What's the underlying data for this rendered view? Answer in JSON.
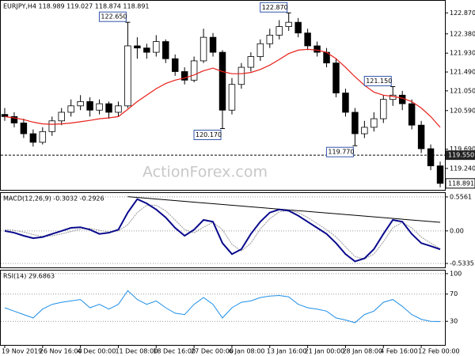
{
  "chart_data": {
    "type": "candlestick",
    "title": "EURJPY,H4  118.989 119.027 118.874 118.891",
    "watermark": "ActionForex.com",
    "categories": [
      "19 Nov 2019",
      null,
      null,
      null,
      "26 Nov 16:00",
      null,
      null,
      null,
      "4 Dec 00:00",
      null,
      null,
      null,
      "11 Dec 08:00",
      null,
      null,
      null,
      "18 Dec 16:00",
      null,
      null,
      null,
      "27 Dec 00:00",
      null,
      null,
      null,
      "6 Jan 08:00",
      null,
      null,
      null,
      "13 Jan 16:00",
      null,
      null,
      null,
      "21 Jan 00:00",
      null,
      null,
      null,
      "28 Jan 08:00",
      null,
      null,
      null,
      "4 Feb 16:00",
      null,
      null,
      null,
      "12 Feb 00:00",
      null,
      null
    ],
    "open": [
      120.5,
      120.45,
      120.3,
      120.05,
      119.85,
      120.1,
      120.35,
      120.55,
      120.7,
      120.8,
      120.6,
      120.75,
      120.55,
      120.7,
      122.1,
      122.05,
      121.95,
      122.2,
      121.8,
      121.5,
      121.3,
      121.75,
      122.3,
      121.95,
      120.6,
      121.2,
      121.6,
      121.85,
      122.15,
      122.35,
      122.55,
      122.65,
      122.4,
      122.1,
      121.95,
      121.7,
      121.0,
      120.55,
      120.05,
      120.2,
      120.4,
      120.85,
      120.95,
      120.75,
      120.25,
      119.7,
      119.3
    ],
    "high": [
      120.65,
      120.55,
      120.4,
      120.15,
      120.2,
      120.45,
      120.65,
      120.85,
      120.95,
      120.9,
      120.85,
      120.8,
      120.8,
      122.65,
      122.3,
      122.15,
      122.35,
      122.25,
      121.9,
      121.6,
      121.85,
      122.5,
      122.4,
      122.0,
      121.35,
      121.7,
      121.95,
      122.25,
      122.5,
      122.7,
      122.87,
      122.75,
      122.5,
      122.2,
      122.05,
      121.8,
      121.1,
      120.65,
      120.35,
      120.55,
      120.95,
      121.15,
      121.05,
      120.85,
      120.35,
      119.8,
      119.4
    ],
    "low": [
      120.35,
      120.2,
      119.95,
      119.75,
      119.8,
      120.0,
      120.25,
      120.45,
      120.6,
      120.45,
      120.5,
      120.4,
      120.45,
      120.65,
      121.8,
      121.8,
      121.85,
      121.7,
      121.4,
      121.2,
      121.25,
      121.7,
      121.85,
      120.17,
      120.5,
      121.1,
      121.5,
      121.75,
      122.05,
      122.25,
      122.45,
      122.3,
      122.0,
      121.85,
      121.6,
      120.9,
      120.45,
      119.77,
      119.95,
      120.1,
      120.3,
      120.7,
      120.6,
      120.15,
      119.6,
      119.2,
      118.8
    ],
    "close": [
      120.45,
      120.3,
      120.05,
      119.85,
      120.1,
      120.35,
      120.55,
      120.7,
      120.8,
      120.6,
      120.75,
      120.55,
      120.7,
      122.1,
      122.05,
      121.95,
      122.2,
      121.8,
      121.5,
      121.3,
      121.75,
      122.3,
      121.95,
      120.6,
      121.2,
      121.6,
      121.85,
      122.15,
      122.35,
      122.55,
      122.65,
      122.4,
      122.1,
      121.95,
      121.7,
      121.0,
      120.55,
      120.05,
      120.2,
      120.4,
      120.85,
      120.95,
      120.75,
      120.25,
      119.7,
      119.3,
      118.891
    ],
    "ma": {
      "color": "#e8201a",
      "values": [
        120.45,
        120.42,
        120.38,
        120.32,
        120.28,
        120.27,
        120.28,
        120.3,
        120.33,
        120.36,
        120.4,
        120.42,
        120.45,
        120.62,
        120.8,
        120.95,
        121.1,
        121.22,
        121.3,
        121.35,
        121.42,
        121.52,
        121.58,
        121.5,
        121.45,
        121.45,
        121.48,
        121.55,
        121.65,
        121.78,
        121.92,
        122.0,
        122.02,
        122.0,
        121.95,
        121.8,
        121.6,
        121.38,
        121.18,
        121.02,
        120.95,
        120.92,
        120.88,
        120.8,
        120.65,
        120.45,
        120.2
      ]
    },
    "ylim": [
      118.74,
      123.17
    ],
    "yticks": [
      {
        "value": 122.87,
        "label": "122.870"
      },
      {
        "value": 122.38,
        "label": "122.380"
      },
      {
        "value": 121.93,
        "label": "121.930"
      },
      {
        "value": 121.49,
        "label": "121.490"
      },
      {
        "value": 121.05,
        "label": "121.050"
      },
      {
        "value": 120.59,
        "label": "120.590"
      },
      {
        "value": 119.69,
        "label": "119.690"
      },
      {
        "value": 119.24,
        "label": "119.240"
      }
    ],
    "level": {
      "value": 119.55,
      "label": "119.550"
    },
    "last_price": {
      "value": 118.891,
      "label": "118.891"
    },
    "annotations": [
      {
        "index": 13,
        "value": 122.65,
        "label": "122.650"
      },
      {
        "index": 30,
        "value": 122.87,
        "label": "122.870"
      },
      {
        "index": 23,
        "value": 120.17,
        "label": "120.170"
      },
      {
        "index": 37,
        "value": 119.77,
        "label": "119.770"
      },
      {
        "index": 41,
        "value": 121.15,
        "label": "121.150"
      }
    ],
    "macd": {
      "title": "MACD(12,26,9) -0.3032 -0.2926",
      "ylim": [
        -0.598,
        0.633
      ],
      "yticks": [
        0.5561,
        {
          "value": 0,
          "label": "0.00"
        },
        -0.5335
      ],
      "main": {
        "color": "#0a0a8c",
        "values": [
          0.0,
          -0.03,
          -0.08,
          -0.12,
          -0.1,
          -0.05,
          0.0,
          0.05,
          0.06,
          0.02,
          -0.05,
          -0.03,
          0.02,
          0.3,
          0.52,
          0.45,
          0.35,
          0.22,
          0.05,
          -0.08,
          0.02,
          0.18,
          0.15,
          -0.2,
          -0.38,
          -0.3,
          -0.05,
          0.15,
          0.3,
          0.35,
          0.33,
          0.25,
          0.15,
          0.05,
          -0.05,
          -0.2,
          -0.38,
          -0.5,
          -0.45,
          -0.3,
          -0.05,
          0.18,
          0.15,
          -0.05,
          -0.2,
          -0.25,
          -0.3032
        ]
      },
      "signal": {
        "color": "#999999",
        "values": [
          0.02,
          0.01,
          -0.02,
          -0.06,
          -0.09,
          -0.08,
          -0.05,
          -0.01,
          0.03,
          0.04,
          0.01,
          -0.02,
          0.0,
          0.1,
          0.3,
          0.42,
          0.42,
          0.33,
          0.18,
          0.02,
          -0.03,
          0.06,
          0.14,
          0.02,
          -0.22,
          -0.33,
          -0.2,
          0.03,
          0.2,
          0.31,
          0.34,
          0.3,
          0.22,
          0.12,
          0.02,
          -0.1,
          -0.26,
          -0.42,
          -0.46,
          -0.38,
          -0.18,
          0.05,
          0.14,
          0.05,
          -0.1,
          -0.2,
          -0.2926
        ]
      },
      "trendline": {
        "x": [
          13,
          46
        ],
        "values": [
          0.56,
          0.14
        ]
      }
    },
    "rsi": {
      "title": "RSI(14) 29.6863",
      "ylim": [
        -4.6,
        105.7
      ],
      "yticks": [
        100,
        70,
        30
      ],
      "color": "#1e8fe8",
      "values": [
        50,
        45,
        40,
        35,
        48,
        55,
        58,
        60,
        62,
        50,
        55,
        48,
        55,
        75,
        62,
        55,
        60,
        50,
        42,
        40,
        55,
        65,
        55,
        35,
        50,
        58,
        60,
        65,
        67,
        68,
        66,
        55,
        50,
        48,
        45,
        35,
        32,
        28,
        40,
        45,
        58,
        62,
        52,
        40,
        33,
        30,
        29.6863
      ]
    }
  }
}
